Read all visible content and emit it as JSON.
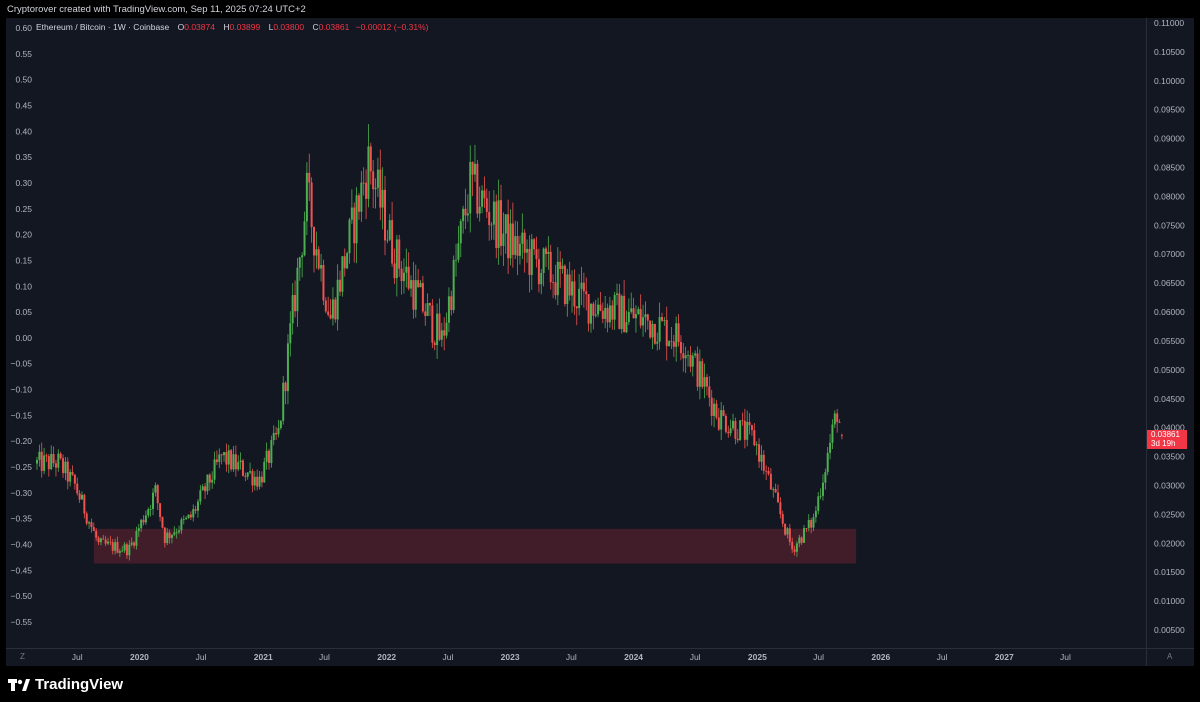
{
  "header": {
    "credit": "Cryptorover created with TradingView.com, Sep 11, 2025 07:24 UTC+2"
  },
  "legend": {
    "symbol": "Ethereum / Bitcoin · 1W · Coinbase",
    "open_label": "O",
    "open": "0.03874",
    "high_label": "H",
    "high": "0.03899",
    "low_label": "L",
    "low": "0.03800",
    "close_label": "C",
    "close": "0.03861",
    "change": "−0.00012 (−0.31%)"
  },
  "price_tag": {
    "price": "0.03861",
    "countdown": "3d 19h"
  },
  "footer": {
    "brand": "TradingView"
  },
  "corner_buttons": {
    "left": "Z",
    "right": "A"
  },
  "colors": {
    "background": "#131722",
    "up": "#26a69a",
    "up_candle": "#4caf50",
    "down": "#ef5350",
    "zone_fill": "#4a1f2b",
    "text": "#d1d4dc",
    "axis_text": "#b2b5be",
    "tag": "#f23645"
  },
  "chart_data": {
    "type": "candlestick",
    "title": "Ethereum / Bitcoin · 1W · Coinbase",
    "left_axis": {
      "ticks": [
        "0.60",
        "0.55",
        "0.50",
        "0.45",
        "0.40",
        "0.35",
        "0.30",
        "0.25",
        "0.20",
        "0.15",
        "0.10",
        "0.05",
        "0.00",
        "−0.05",
        "−0.10",
        "−0.15",
        "−0.20",
        "−0.25",
        "−0.30",
        "−0.35",
        "−0.40",
        "−0.45",
        "−0.50",
        "−0.55"
      ],
      "range": [
        -0.55,
        0.6
      ]
    },
    "right_axis": {
      "ticks": [
        "0.11000",
        "0.10500",
        "0.10000",
        "0.09500",
        "0.09000",
        "0.08500",
        "0.08000",
        "0.07500",
        "0.07000",
        "0.06500",
        "0.06000",
        "0.05500",
        "0.05000",
        "0.04500",
        "0.04000",
        "0.03500",
        "0.03000",
        "0.02500",
        "0.02000",
        "0.01500",
        "0.01000",
        "0.00500"
      ],
      "range": [
        0.005,
        0.11
      ]
    },
    "x_axis": {
      "ticks": [
        "Jul",
        "2020",
        "Jul",
        "2021",
        "Jul",
        "2022",
        "Jul",
        "2023",
        "Jul",
        "2024",
        "Jul",
        "2025",
        "Jul",
        "2026",
        "Jul",
        "2027",
        "Jul"
      ],
      "range": [
        "2019-03",
        "2027-12"
      ]
    },
    "support_zone": {
      "price_low": 0.0165,
      "price_high": 0.0225,
      "from": "2019-08",
      "to": "2025-10"
    },
    "weekly_closes_approx": [
      [
        "2019-03-04",
        0.0338
      ],
      [
        "2019-05-06",
        0.034
      ],
      [
        "2019-06-24",
        0.03
      ],
      [
        "2019-09-02",
        0.0198
      ],
      [
        "2019-12-02",
        0.019
      ],
      [
        "2020-02-17",
        0.029
      ],
      [
        "2020-03-16",
        0.021
      ],
      [
        "2020-06-01",
        0.0245
      ],
      [
        "2020-08-31",
        0.035
      ],
      [
        "2020-12-21",
        0.031
      ],
      [
        "2021-02-15",
        0.039
      ],
      [
        "2021-05-10",
        0.08
      ],
      [
        "2021-07-19",
        0.059
      ],
      [
        "2021-11-08",
        0.086
      ],
      [
        "2022-01-24",
        0.07
      ],
      [
        "2022-06-13",
        0.055
      ],
      [
        "2022-09-05",
        0.082
      ],
      [
        "2023-01-02",
        0.072
      ],
      [
        "2023-06-05",
        0.065
      ],
      [
        "2023-07-31",
        0.062
      ],
      [
        "2024-03-04",
        0.058
      ],
      [
        "2024-05-27",
        0.055
      ],
      [
        "2024-09-09",
        0.042
      ],
      [
        "2024-12-23",
        0.038
      ],
      [
        "2025-04-14",
        0.019
      ],
      [
        "2025-06-16",
        0.024
      ],
      [
        "2025-08-25",
        0.043
      ],
      [
        "2025-09-08",
        0.0386
      ]
    ],
    "last_bar": {
      "open": 0.03874,
      "high": 0.03899,
      "low": 0.038,
      "close": 0.03861
    }
  }
}
